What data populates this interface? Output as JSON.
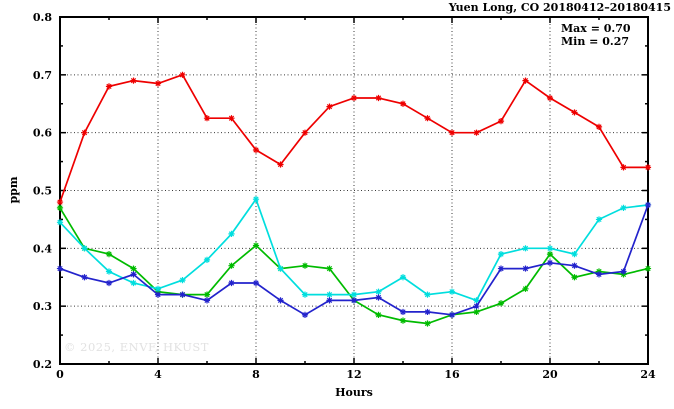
{
  "chart": {
    "title": "Yuen Long, CO 20180412–20180415",
    "ylabel": "ppm",
    "xlabel": "Hours",
    "annotation_max": "Max = 0.70",
    "annotation_min": "Min = 0.27",
    "watermark": "© 2025, ENVF, HKUST"
  },
  "chart_data": {
    "type": "line",
    "title": "Yuen Long, CO 20180412–20180415",
    "xlabel": "Hours",
    "ylabel": "ppm",
    "xlim": [
      0,
      24
    ],
    "ylim": [
      0.2,
      0.8
    ],
    "x_major_ticks": [
      0,
      4,
      8,
      12,
      16,
      20,
      24
    ],
    "x_minor_ticks": [
      2,
      6,
      10,
      14,
      18,
      22
    ],
    "y_major_ticks": [
      0.2,
      0.3,
      0.4,
      0.5,
      0.6,
      0.7,
      0.8
    ],
    "y_minor_ticks": [
      0.25,
      0.35,
      0.45,
      0.55,
      0.65,
      0.75
    ],
    "grid": true,
    "legend_position": "none",
    "annotations": [
      "Max = 0.70",
      "Min = 0.27"
    ],
    "marker": "asterisk",
    "x": [
      0,
      1,
      2,
      3,
      4,
      5,
      6,
      7,
      8,
      9,
      10,
      11,
      12,
      13,
      14,
      15,
      16,
      17,
      18,
      19,
      20,
      21,
      22,
      23,
      24
    ],
    "series": [
      {
        "name": "day-1-red",
        "color": "#ee0000",
        "values": [
          0.48,
          0.6,
          0.68,
          0.69,
          0.685,
          0.7,
          0.625,
          0.625,
          0.57,
          0.545,
          0.6,
          0.645,
          0.66,
          0.66,
          0.65,
          0.625,
          0.6,
          0.6,
          0.62,
          0.69,
          0.66,
          0.635,
          0.61,
          0.54,
          0.54
        ]
      },
      {
        "name": "day-2-green",
        "color": "#00bb00",
        "values": [
          0.47,
          0.4,
          0.39,
          0.365,
          0.325,
          0.32,
          0.32,
          0.37,
          0.405,
          0.365,
          0.37,
          0.365,
          0.31,
          0.285,
          0.275,
          0.27,
          0.285,
          0.29,
          0.305,
          0.33,
          0.39,
          0.35,
          0.36,
          0.355,
          0.365
        ]
      },
      {
        "name": "day-3-cyan",
        "color": "#00dede",
        "values": [
          0.445,
          0.4,
          0.36,
          0.34,
          0.33,
          0.345,
          0.38,
          0.425,
          0.485,
          0.365,
          0.32,
          0.32,
          0.32,
          0.325,
          0.35,
          0.32,
          0.325,
          0.31,
          0.39,
          0.4,
          0.4,
          0.39,
          0.45,
          0.47,
          0.475
        ]
      },
      {
        "name": "day-4-blue",
        "color": "#2323cc",
        "values": [
          0.365,
          0.35,
          0.34,
          0.355,
          0.32,
          0.32,
          0.31,
          0.34,
          0.34,
          0.31,
          0.285,
          0.31,
          0.31,
          0.315,
          0.29,
          0.29,
          0.285,
          0.3,
          0.365,
          0.365,
          0.375,
          0.37,
          0.355,
          0.36,
          0.475
        ]
      }
    ]
  }
}
